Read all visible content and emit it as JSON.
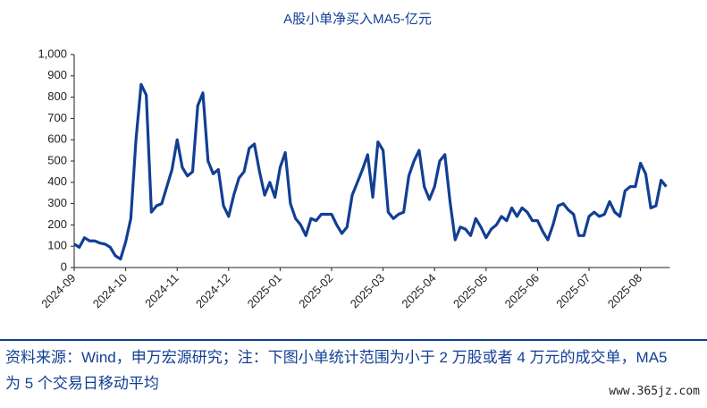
{
  "chart_data": {
    "type": "line",
    "title": "A股小单净买入MA5-亿元",
    "categories": [
      "2024-09",
      null,
      null,
      null,
      null,
      null,
      null,
      null,
      null,
      null,
      "2024-10",
      null,
      null,
      null,
      null,
      null,
      null,
      null,
      null,
      null,
      "2024-11",
      null,
      null,
      null,
      null,
      null,
      null,
      null,
      null,
      null,
      "2024-12",
      null,
      null,
      null,
      null,
      null,
      null,
      null,
      null,
      null,
      "2025-01",
      null,
      null,
      null,
      null,
      null,
      null,
      null,
      null,
      null,
      "2025-02",
      null,
      null,
      null,
      null,
      null,
      null,
      null,
      null,
      null,
      "2025-03",
      null,
      null,
      null,
      null,
      null,
      null,
      null,
      null,
      null,
      "2025-04",
      null,
      null,
      null,
      null,
      null,
      null,
      null,
      null,
      null,
      "2025-05",
      null,
      null,
      null,
      null,
      null,
      null,
      null,
      null,
      null,
      "2025-06",
      null,
      null,
      null,
      null,
      null,
      null,
      null,
      null,
      null,
      "2025-07",
      null,
      null,
      null,
      null,
      null,
      null,
      null,
      null,
      null,
      "2025-08",
      null,
      null,
      null,
      null,
      null
    ],
    "series": [
      {
        "name": "A股小单净买入MA5",
        "color": "#123f94",
        "values": [
          110,
          95,
          140,
          125,
          125,
          115,
          110,
          95,
          55,
          40,
          120,
          230,
          600,
          860,
          810,
          260,
          290,
          300,
          380,
          460,
          600,
          470,
          430,
          450,
          760,
          820,
          500,
          440,
          460,
          290,
          240,
          340,
          420,
          450,
          560,
          580,
          450,
          340,
          400,
          330,
          470,
          540,
          300,
          230,
          200,
          150,
          230,
          220,
          250,
          250,
          250,
          200,
          160,
          190,
          340,
          400,
          460,
          530,
          330,
          590,
          550,
          260,
          230,
          250,
          260,
          430,
          500,
          550,
          380,
          320,
          380,
          500,
          530,
          310,
          130,
          190,
          180,
          150,
          230,
          190,
          140,
          180,
          200,
          240,
          220,
          280,
          240,
          280,
          260,
          220,
          220,
          170,
          130,
          200,
          290,
          300,
          270,
          250,
          150,
          150,
          240,
          260,
          240,
          250,
          310,
          260,
          240,
          360,
          380,
          380,
          490,
          440,
          280,
          290,
          410,
          380
        ]
      }
    ],
    "ylim": [
      0,
      1000
    ],
    "yticks": [
      0,
      100,
      200,
      300,
      400,
      500,
      600,
      700,
      800,
      900,
      {
        "value": 1000,
        "label": "1,000"
      }
    ],
    "grid": false
  },
  "footer": {
    "source": "资料来源：Wind，申万宏源研究；注：下图小单统计范围为小于 2 万股或者 4 万元的成交单，MA5 为 5 个交易日移动平均",
    "watermark": "www.365jz.com"
  }
}
